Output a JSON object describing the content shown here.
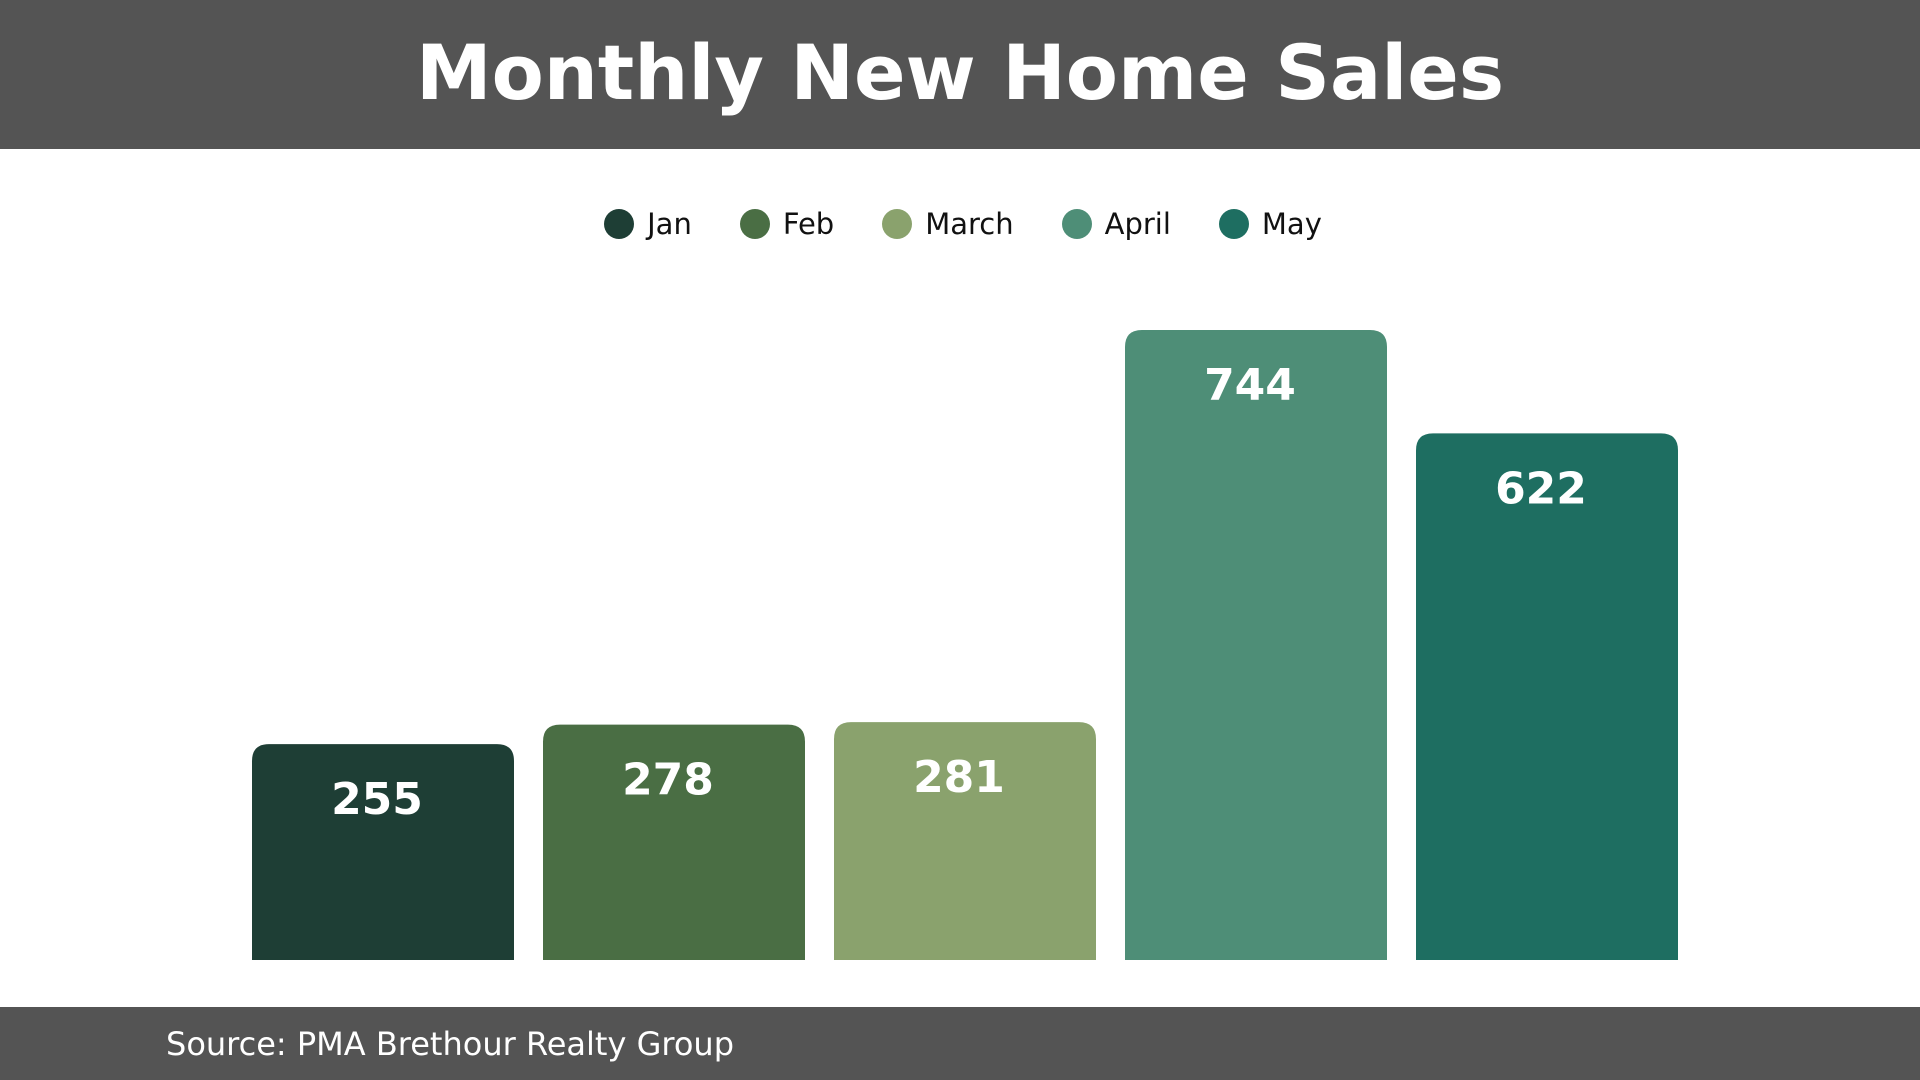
{
  "header": {
    "title": "Monthly New Home Sales"
  },
  "footer": {
    "source": "Source: PMA Brethour Realty Group"
  },
  "colors": {
    "header_bg": "#545454",
    "Jan": "#1e3e35",
    "Feb": "#4a6e44",
    "March": "#8aa26d",
    "April": "#4e8e77",
    "May": "#1e6e61"
  },
  "chart_data": {
    "type": "bar",
    "categories": [
      "Jan",
      "Feb",
      "March",
      "April",
      "May"
    ],
    "values": [
      255,
      278,
      281,
      744,
      622
    ],
    "title": "Monthly New Home Sales",
    "xlabel": "",
    "ylabel": "",
    "ylim": [
      0,
      800
    ],
    "grid": false,
    "legend": "top-center",
    "data_labels": [
      "255",
      "278",
      "281",
      "744",
      "622"
    ]
  }
}
